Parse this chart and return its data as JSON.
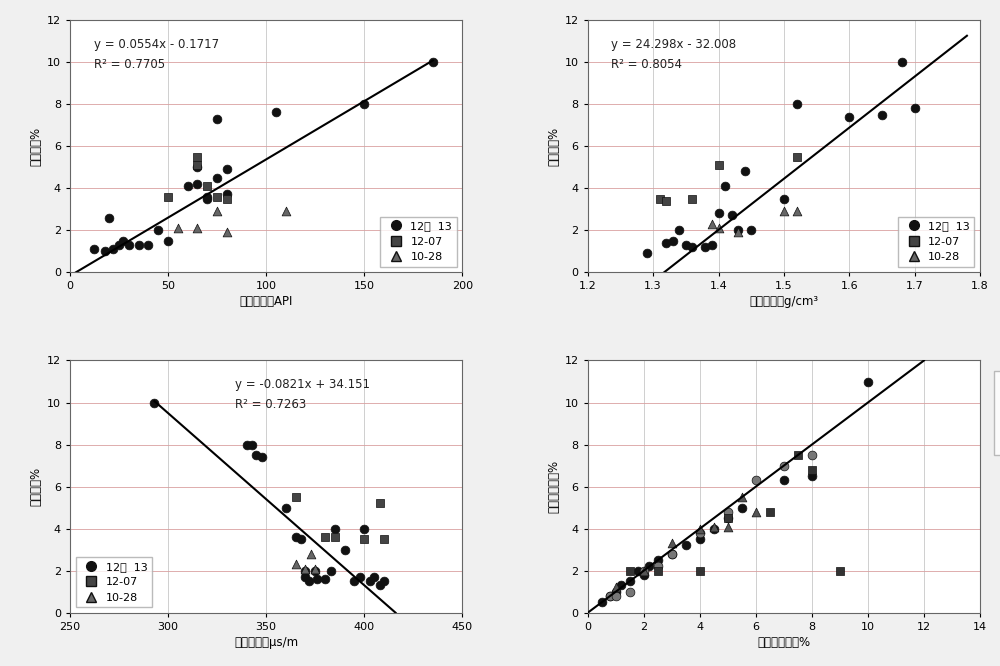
{
  "panel1": {
    "xlabel": "自然伽马，API",
    "ylabel": "全水分，%",
    "equation": "y = 0.0554x - 0.1717",
    "r2": "R² = 0.7705",
    "xlim": [
      0,
      200
    ],
    "ylim": [
      0,
      12
    ],
    "xticks": [
      0,
      50,
      100,
      150,
      200
    ],
    "yticks": [
      0,
      2,
      4,
      6,
      8,
      10,
      12
    ],
    "line_x": [
      3.1,
      185
    ],
    "line_y": [
      0.0,
      10.074
    ],
    "scatter_black": [
      [
        12,
        1.1
      ],
      [
        18,
        1.0
      ],
      [
        20,
        2.6
      ],
      [
        22,
        1.1
      ],
      [
        25,
        1.3
      ],
      [
        27,
        1.5
      ],
      [
        30,
        1.3
      ],
      [
        35,
        1.3
      ],
      [
        40,
        1.3
      ],
      [
        45,
        2.0
      ],
      [
        50,
        1.5
      ],
      [
        60,
        4.1
      ],
      [
        65,
        4.2
      ],
      [
        65,
        5.0
      ],
      [
        70,
        3.6
      ],
      [
        70,
        3.5
      ],
      [
        75,
        4.5
      ],
      [
        75,
        7.3
      ],
      [
        80,
        3.7
      ],
      [
        80,
        4.9
      ],
      [
        105,
        7.6
      ],
      [
        150,
        8.0
      ],
      [
        185,
        10.0
      ]
    ],
    "scatter_square": [
      [
        50,
        3.6
      ],
      [
        65,
        5.1
      ],
      [
        65,
        5.5
      ],
      [
        70,
        4.1
      ],
      [
        75,
        3.6
      ],
      [
        80,
        3.5
      ]
    ],
    "scatter_triangle": [
      [
        55,
        2.1
      ],
      [
        65,
        2.1
      ],
      [
        75,
        2.9
      ],
      [
        80,
        1.9
      ],
      [
        110,
        2.9
      ]
    ],
    "legend_loc": "lower right"
  },
  "panel2": {
    "xlabel": "体积密度，g/cm³",
    "ylabel": "全水分，%",
    "equation": "y = 24.298x - 32.008",
    "r2": "R² = 0.8054",
    "xlim": [
      1.2,
      1.8
    ],
    "ylim": [
      0,
      12
    ],
    "xticks": [
      1.2,
      1.3,
      1.4,
      1.5,
      1.6,
      1.7,
      1.8
    ],
    "yticks": [
      0,
      2,
      4,
      6,
      8,
      10,
      12
    ],
    "line_x": [
      1.317,
      1.78
    ],
    "line_y": [
      0.0,
      11.25
    ],
    "scatter_black": [
      [
        1.29,
        0.9
      ],
      [
        1.32,
        1.4
      ],
      [
        1.33,
        1.5
      ],
      [
        1.34,
        2.0
      ],
      [
        1.35,
        1.3
      ],
      [
        1.36,
        1.2
      ],
      [
        1.38,
        1.2
      ],
      [
        1.39,
        1.3
      ],
      [
        1.4,
        2.8
      ],
      [
        1.41,
        4.1
      ],
      [
        1.42,
        2.7
      ],
      [
        1.43,
        2.0
      ],
      [
        1.44,
        4.8
      ],
      [
        1.45,
        2.0
      ],
      [
        1.5,
        3.5
      ],
      [
        1.52,
        8.0
      ],
      [
        1.6,
        7.4
      ],
      [
        1.65,
        7.5
      ],
      [
        1.68,
        10.0
      ],
      [
        1.7,
        7.8
      ]
    ],
    "scatter_square": [
      [
        1.31,
        3.5
      ],
      [
        1.32,
        3.4
      ],
      [
        1.36,
        3.5
      ],
      [
        1.4,
        5.1
      ],
      [
        1.52,
        5.5
      ]
    ],
    "scatter_triangle": [
      [
        1.39,
        2.3
      ],
      [
        1.4,
        2.1
      ],
      [
        1.43,
        1.9
      ],
      [
        1.5,
        2.9
      ],
      [
        1.52,
        2.9
      ]
    ],
    "legend_loc": "lower right"
  },
  "panel3": {
    "xlabel": "声波时差，μs/m",
    "ylabel": "全水分，%",
    "equation": "y = -0.0821x + 34.151",
    "r2": "R² = 0.7263",
    "xlim": [
      250,
      450
    ],
    "ylim": [
      0,
      12
    ],
    "xticks": [
      250,
      300,
      350,
      400,
      450
    ],
    "yticks": [
      0,
      2,
      4,
      6,
      8,
      10,
      12
    ],
    "line_x": [
      293,
      416
    ],
    "line_y": [
      10.07,
      0.0
    ],
    "scatter_black": [
      [
        293,
        10.0
      ],
      [
        340,
        8.0
      ],
      [
        343,
        8.0
      ],
      [
        345,
        7.5
      ],
      [
        348,
        7.4
      ],
      [
        360,
        5.0
      ],
      [
        365,
        3.6
      ],
      [
        368,
        3.5
      ],
      [
        370,
        2.0
      ],
      [
        370,
        1.7
      ],
      [
        372,
        1.5
      ],
      [
        375,
        2.0
      ],
      [
        376,
        1.6
      ],
      [
        380,
        1.6
      ],
      [
        383,
        2.0
      ],
      [
        385,
        4.0
      ],
      [
        390,
        3.0
      ],
      [
        395,
        1.5
      ],
      [
        398,
        1.7
      ],
      [
        400,
        4.0
      ],
      [
        403,
        1.5
      ],
      [
        405,
        1.7
      ],
      [
        408,
        1.3
      ],
      [
        410,
        1.5
      ]
    ],
    "scatter_square": [
      [
        365,
        5.5
      ],
      [
        380,
        3.6
      ],
      [
        385,
        3.6
      ],
      [
        400,
        3.5
      ],
      [
        410,
        3.5
      ],
      [
        408,
        5.2
      ]
    ],
    "scatter_triangle": [
      [
        365,
        2.3
      ],
      [
        370,
        2.1
      ],
      [
        373,
        2.8
      ],
      [
        375,
        2.1
      ]
    ],
    "legend_loc": "lower left",
    "eq_x": 0.42
  },
  "panel4": {
    "xlabel": "煎心全水分，%",
    "ylabel": "计算全水分，%",
    "xlim": [
      0,
      14
    ],
    "ylim": [
      0,
      12
    ],
    "xticks": [
      0,
      2,
      4,
      6,
      8,
      10,
      12,
      14
    ],
    "yticks": [
      0,
      2,
      4,
      6,
      8,
      10,
      12
    ],
    "line_x": [
      0,
      12
    ],
    "line_y": [
      0,
      12
    ],
    "scatter_black12": [
      [
        0.5,
        0.5
      ],
      [
        0.8,
        0.8
      ],
      [
        1.0,
        1.0
      ],
      [
        1.2,
        1.3
      ],
      [
        1.5,
        1.5
      ],
      [
        1.8,
        2.0
      ],
      [
        2.0,
        1.8
      ],
      [
        2.2,
        2.2
      ],
      [
        2.5,
        2.5
      ],
      [
        3.0,
        2.8
      ],
      [
        3.5,
        3.2
      ],
      [
        4.0,
        3.5
      ],
      [
        4.5,
        4.0
      ],
      [
        5.0,
        4.5
      ],
      [
        5.5,
        5.0
      ],
      [
        7.0,
        6.3
      ],
      [
        8.0,
        6.5
      ],
      [
        10.0,
        11.0
      ]
    ],
    "scatter_gray13": [
      [
        0.8,
        0.8
      ],
      [
        1.0,
        0.8
      ],
      [
        1.5,
        1.0
      ],
      [
        2.0,
        2.0
      ],
      [
        2.5,
        2.2
      ],
      [
        3.0,
        2.8
      ],
      [
        4.0,
        3.8
      ],
      [
        5.0,
        4.8
      ],
      [
        6.0,
        6.3
      ],
      [
        7.0,
        7.0
      ],
      [
        8.0,
        7.5
      ]
    ],
    "scatter_triangle": [
      [
        1.0,
        1.2
      ],
      [
        2.0,
        2.0
      ],
      [
        3.0,
        3.3
      ],
      [
        4.0,
        4.0
      ],
      [
        4.5,
        4.1
      ],
      [
        5.0,
        4.1
      ],
      [
        5.5,
        5.5
      ],
      [
        6.0,
        4.8
      ]
    ],
    "scatter_square": [
      [
        1.5,
        2.0
      ],
      [
        2.5,
        2.0
      ],
      [
        4.0,
        2.0
      ],
      [
        5.0,
        4.5
      ],
      [
        6.5,
        4.8
      ],
      [
        7.5,
        7.5
      ],
      [
        8.0,
        6.8
      ],
      [
        9.0,
        2.0
      ]
    ],
    "legend_outside": true
  },
  "bg_color": "#f0f0f0",
  "plot_bg": "#ffffff",
  "grid_h_color": "#d9a0a0",
  "grid_v_color": "#c8c8c8"
}
